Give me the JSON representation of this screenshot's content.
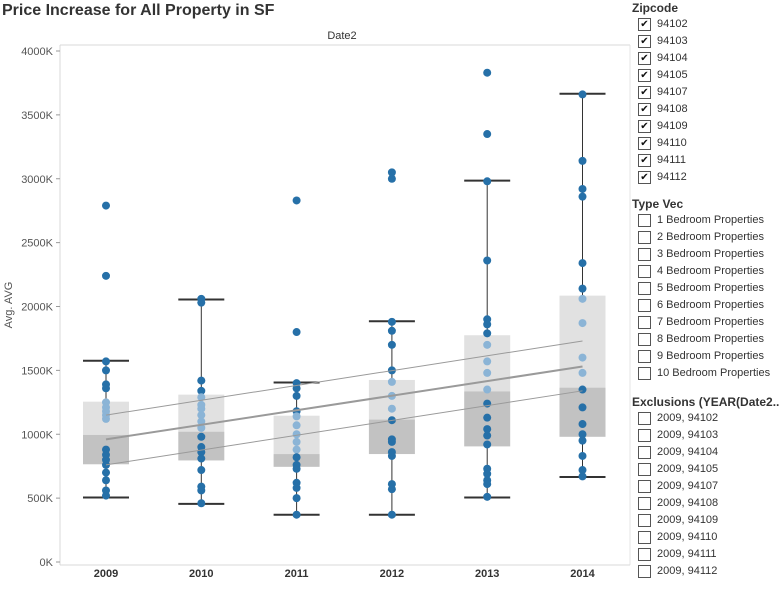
{
  "title": "Price Increase for All Property in SF",
  "chart_data": {
    "type": "box",
    "title": "Price Increase for All Property in SF",
    "column_header": "Date2",
    "ylabel": "Avg. AVG",
    "ylim": [
      0,
      4000000
    ],
    "yticks": [
      0,
      500000,
      1000000,
      1500000,
      2000000,
      2500000,
      3000000,
      3500000,
      4000000
    ],
    "ytick_labels": [
      "0K",
      "500K",
      "1000K",
      "1500K",
      "2000K",
      "2500K",
      "3000K",
      "3500K",
      "4000K"
    ],
    "categories": [
      "2009",
      "2010",
      "2011",
      "2012",
      "2013",
      "2014"
    ],
    "boxes": [
      {
        "category": "2009",
        "whisker_low": 505000,
        "q1": 765000,
        "median": 995000,
        "q3": 1255000,
        "whisker_high": 1575000
      },
      {
        "category": "2010",
        "whisker_low": 455000,
        "q1": 795000,
        "median": 1020000,
        "q3": 1310000,
        "whisker_high": 2055000
      },
      {
        "category": "2011",
        "whisker_low": 370000,
        "q1": 745000,
        "median": 845000,
        "q3": 1145000,
        "whisker_high": 1405000
      },
      {
        "category": "2012",
        "whisker_low": 370000,
        "q1": 845000,
        "median": 1115000,
        "q3": 1425000,
        "whisker_high": 1885000
      },
      {
        "category": "2013",
        "whisker_low": 505000,
        "q1": 905000,
        "median": 1335000,
        "q3": 1775000,
        "whisker_high": 2985000
      },
      {
        "category": "2014",
        "whisker_low": 665000,
        "q1": 980000,
        "median": 1365000,
        "q3": 2085000,
        "whisker_high": 3665000
      }
    ],
    "points": [
      {
        "category": "2009",
        "values": [
          2790000,
          2240000,
          1570000,
          1500000,
          1390000,
          1360000,
          1250000,
          1210000,
          1180000,
          1150000,
          1120000,
          880000,
          840000,
          800000,
          760000,
          700000,
          640000,
          560000,
          520000
        ]
      },
      {
        "category": "2010",
        "values": [
          2060000,
          2030000,
          1420000,
          1340000,
          1290000,
          1230000,
          1200000,
          1150000,
          1100000,
          1050000,
          980000,
          900000,
          860000,
          810000,
          720000,
          590000,
          560000,
          460000
        ]
      },
      {
        "category": "2011",
        "values": [
          2830000,
          1800000,
          1400000,
          1360000,
          1300000,
          1180000,
          1140000,
          1070000,
          1000000,
          940000,
          880000,
          820000,
          760000,
          730000,
          620000,
          580000,
          500000,
          370000
        ]
      },
      {
        "category": "2012",
        "values": [
          3050000,
          3000000,
          1880000,
          1810000,
          1700000,
          1500000,
          1410000,
          1300000,
          1200000,
          1110000,
          960000,
          940000,
          860000,
          830000,
          610000,
          570000,
          370000
        ]
      },
      {
        "category": "2013",
        "values": [
          3830000,
          3350000,
          2980000,
          2360000,
          1900000,
          1860000,
          1790000,
          1700000,
          1570000,
          1480000,
          1350000,
          1240000,
          1130000,
          1040000,
          990000,
          920000,
          730000,
          690000,
          640000,
          610000,
          510000
        ]
      },
      {
        "category": "2014",
        "values": [
          3660000,
          3140000,
          2920000,
          2860000,
          2340000,
          2140000,
          2060000,
          1870000,
          1600000,
          1480000,
          1350000,
          1210000,
          1080000,
          1000000,
          950000,
          830000,
          720000,
          670000
        ]
      }
    ],
    "trend_lines": [
      {
        "name": "trend",
        "start": {
          "category": "2009",
          "value": 960000
        },
        "end": {
          "category": "2014",
          "value": 1530000
        }
      },
      {
        "name": "upper-bound",
        "start": {
          "category": "2009",
          "value": 1150000
        },
        "end": {
          "category": "2014",
          "value": 1730000
        }
      },
      {
        "name": "lower-bound",
        "start": {
          "category": "2009",
          "value": 760000
        },
        "end": {
          "category": "2014",
          "value": 1340000
        }
      }
    ],
    "colors": {
      "point_dark": "#2670a8",
      "point_light": "#8bb4d6",
      "box_upper": "#e1e1e1",
      "box_lower": "#c2c2c2",
      "whisker": "#333333",
      "trend": "#9a9a9a"
    }
  },
  "sidebar": {
    "zipcode": {
      "title": "Zipcode",
      "items": [
        {
          "label": "94102",
          "checked": true
        },
        {
          "label": "94103",
          "checked": true
        },
        {
          "label": "94104",
          "checked": true
        },
        {
          "label": "94105",
          "checked": true
        },
        {
          "label": "94107",
          "checked": true
        },
        {
          "label": "94108",
          "checked": true
        },
        {
          "label": "94109",
          "checked": true
        },
        {
          "label": "94110",
          "checked": true
        },
        {
          "label": "94111",
          "checked": true
        },
        {
          "label": "94112",
          "checked": true
        }
      ]
    },
    "type_vec": {
      "title": "Type Vec",
      "items": [
        {
          "label": "1 Bedroom Properties",
          "checked": false
        },
        {
          "label": "2 Bedroom Properties",
          "checked": false
        },
        {
          "label": "3 Bedroom Properties",
          "checked": false
        },
        {
          "label": "4 Bedroom Properties",
          "checked": false
        },
        {
          "label": "5 Bedroom Properties",
          "checked": false
        },
        {
          "label": "6 Bedroom Properties",
          "checked": false
        },
        {
          "label": "7 Bedroom Properties",
          "checked": false
        },
        {
          "label": "8 Bedroom Properties",
          "checked": false
        },
        {
          "label": "9 Bedroom Properties",
          "checked": false
        },
        {
          "label": "10 Bedroom Properties",
          "checked": false
        }
      ]
    },
    "exclusions": {
      "title": "Exclusions (YEAR(Date2..",
      "items": [
        {
          "label": "2009, 94102",
          "checked": false
        },
        {
          "label": "2009, 94103",
          "checked": false
        },
        {
          "label": "2009, 94104",
          "checked": false
        },
        {
          "label": "2009, 94105",
          "checked": false
        },
        {
          "label": "2009, 94107",
          "checked": false
        },
        {
          "label": "2009, 94108",
          "checked": false
        },
        {
          "label": "2009, 94109",
          "checked": false
        },
        {
          "label": "2009, 94110",
          "checked": false
        },
        {
          "label": "2009, 94111",
          "checked": false
        },
        {
          "label": "2009, 94112",
          "checked": false
        }
      ]
    }
  }
}
